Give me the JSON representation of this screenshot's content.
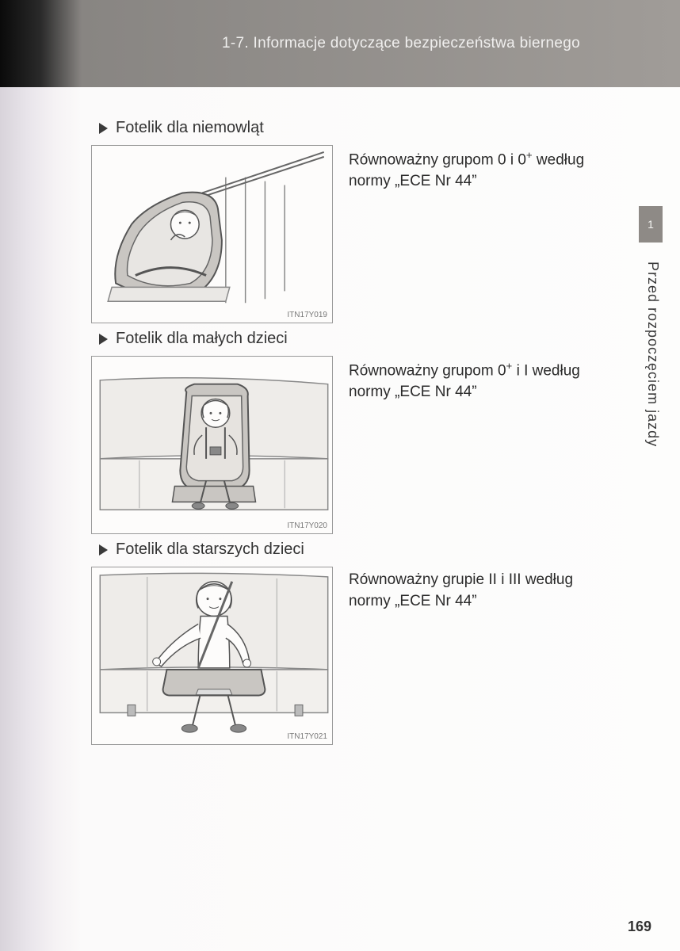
{
  "header": {
    "section_label": "1-7. Informacje dotyczące bezpieczeństwa biernego"
  },
  "sidebar": {
    "tab_number": "1",
    "vertical_text": "Przed rozpoczęciem jazdy"
  },
  "page_number": "169",
  "sections": [
    {
      "heading": "Fotelik dla niemowląt",
      "figure_id": "ITN17Y019",
      "description_html": "Równoważny grupom 0 i 0<span class=\"sup\">+</span> według normy „ECE Nr 44”"
    },
    {
      "heading": "Fotelik dla małych dzieci",
      "figure_id": "ITN17Y020",
      "description_html": "Równoważny grupom 0<span class=\"sup\">+</span> i I według normy „ECE Nr 44”"
    },
    {
      "heading": "Fotelik dla starszych dzieci",
      "figure_id": "ITN17Y021",
      "description_html": "Równoważny grupie II i III według normy „ECE Nr 44”"
    }
  ],
  "colors": {
    "header_bg_dark": "#2a2a2a",
    "header_bg_light": "#a09c98",
    "header_text": "#f0efee",
    "body_text": "#2a2a2a",
    "arrow_fill": "#3a3a3a",
    "figure_border": "#999999",
    "tab_bg": "#8e8a86",
    "tab_text": "#f5f4f2"
  }
}
